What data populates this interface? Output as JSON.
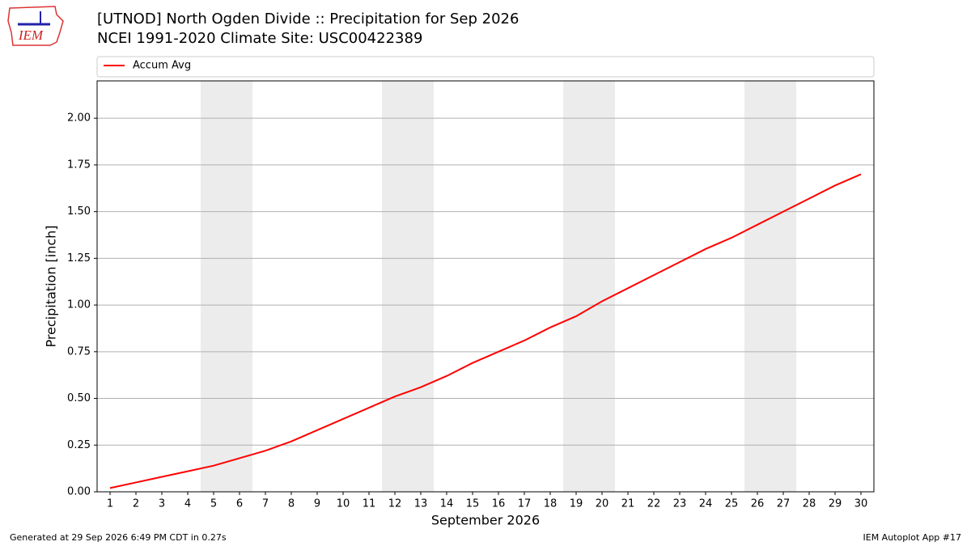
{
  "header": {
    "logo_text": "IEM"
  },
  "footer": {
    "left": "Generated at 29 Sep 2026 6:49 PM CDT in 0.27s",
    "right": "IEM Autoplot App #17"
  },
  "chart_data": {
    "type": "line",
    "title": "[UTNOD] North Ogden Divide  :: Precipitation for Sep 2026",
    "subtitle": "NCEI 1991-2020 Climate Site: USC00422389",
    "xlabel": "September 2026",
    "ylabel": "Precipitation [inch]",
    "x": [
      1,
      2,
      3,
      4,
      5,
      6,
      7,
      8,
      9,
      10,
      11,
      12,
      13,
      14,
      15,
      16,
      17,
      18,
      19,
      20,
      21,
      22,
      23,
      24,
      25,
      26,
      27,
      28,
      29,
      30
    ],
    "series": [
      {
        "name": "Accum Avg",
        "color": "#ff0000",
        "values": [
          0.02,
          0.05,
          0.08,
          0.11,
          0.14,
          0.18,
          0.22,
          0.27,
          0.33,
          0.39,
          0.45,
          0.51,
          0.56,
          0.62,
          0.69,
          0.75,
          0.81,
          0.88,
          0.94,
          1.02,
          1.09,
          1.16,
          1.23,
          1.3,
          1.36,
          1.43,
          1.5,
          1.57,
          1.64,
          1.7
        ]
      }
    ],
    "xlim": [
      0.5,
      30.5
    ],
    "xticks": [
      1,
      2,
      3,
      4,
      5,
      6,
      7,
      8,
      9,
      10,
      11,
      12,
      13,
      14,
      15,
      16,
      17,
      18,
      19,
      20,
      21,
      22,
      23,
      24,
      25,
      26,
      27,
      28,
      29,
      30
    ],
    "ylim": [
      0,
      2.2
    ],
    "yticks": [
      {
        "value": 0,
        "label": "0.00"
      },
      {
        "value": 0.25,
        "label": "0.25"
      },
      {
        "value": 0.5,
        "label": "0.50"
      },
      {
        "value": 0.75,
        "label": "0.75"
      },
      {
        "value": 1,
        "label": "1.00"
      },
      {
        "value": 1.25,
        "label": "1.25"
      },
      {
        "value": 1.5,
        "label": "1.50"
      },
      {
        "value": 1.75,
        "label": "1.75"
      },
      {
        "value": 2,
        "label": "2.00"
      }
    ],
    "shaded_ranges": [
      [
        4.5,
        6.5
      ],
      [
        11.5,
        13.5
      ],
      [
        18.5,
        20.5
      ],
      [
        25.5,
        27.5
      ]
    ],
    "shade_color": "#ececec",
    "grid": true,
    "legend": "top"
  }
}
